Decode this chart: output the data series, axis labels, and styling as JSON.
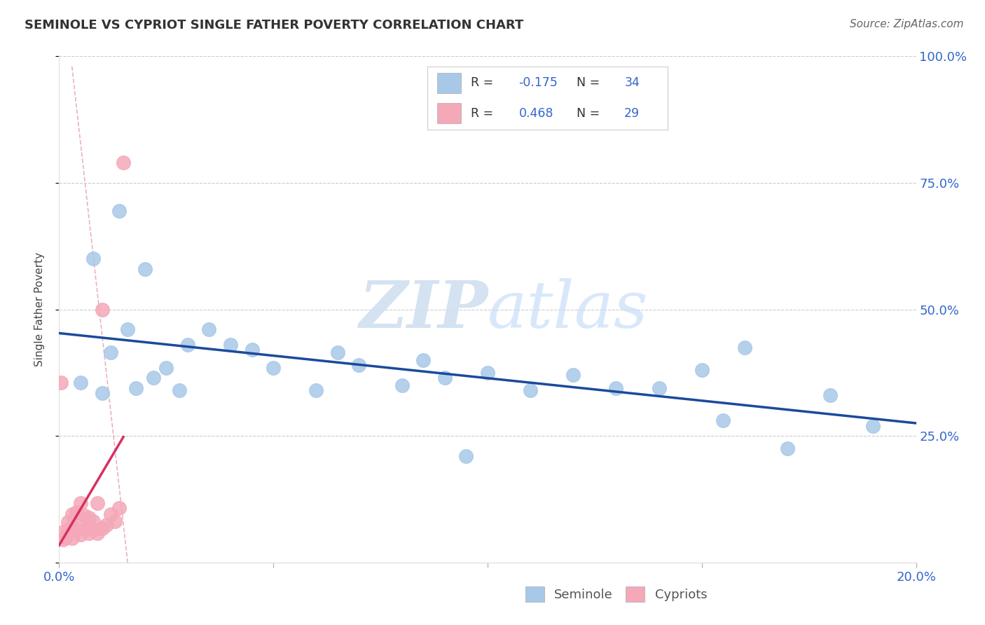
{
  "title": "SEMINOLE VS CYPRIOT SINGLE FATHER POVERTY CORRELATION CHART",
  "source": "Source: ZipAtlas.com",
  "ylabel": "Single Father Poverty",
  "xlim": [
    0.0,
    0.2
  ],
  "ylim": [
    0.0,
    1.0
  ],
  "R_seminole": -0.175,
  "N_seminole": 34,
  "R_cypriot": 0.468,
  "N_cypriot": 29,
  "legend_label_seminole": "Seminole",
  "legend_label_cypriot": "Cypriots",
  "seminole_color": "#a8c8e8",
  "cypriot_color": "#f4a8b8",
  "trend_seminole_color": "#1a4a9c",
  "trend_cypriot_color": "#d83060",
  "background_color": "#ffffff",
  "grid_color": "#cccccc",
  "watermark_zip": "ZIP",
  "watermark_atlas": "atlas",
  "seminole_x": [
    0.005,
    0.008,
    0.01,
    0.012,
    0.014,
    0.016,
    0.018,
    0.02,
    0.022,
    0.025,
    0.028,
    0.03,
    0.035,
    0.04,
    0.045,
    0.05,
    0.06,
    0.065,
    0.07,
    0.08,
    0.085,
    0.09,
    0.095,
    0.1,
    0.11,
    0.12,
    0.13,
    0.14,
    0.15,
    0.155,
    0.16,
    0.17,
    0.18,
    0.19
  ],
  "seminole_y": [
    0.355,
    0.6,
    0.335,
    0.415,
    0.695,
    0.46,
    0.345,
    0.58,
    0.365,
    0.385,
    0.34,
    0.43,
    0.46,
    0.43,
    0.42,
    0.385,
    0.34,
    0.415,
    0.39,
    0.35,
    0.4,
    0.365,
    0.21,
    0.375,
    0.34,
    0.37,
    0.345,
    0.345,
    0.38,
    0.28,
    0.425,
    0.225,
    0.33,
    0.27
  ],
  "cypriot_x": [
    0.0005,
    0.001,
    0.001,
    0.0015,
    0.002,
    0.002,
    0.003,
    0.003,
    0.003,
    0.004,
    0.004,
    0.005,
    0.005,
    0.005,
    0.006,
    0.006,
    0.007,
    0.007,
    0.008,
    0.008,
    0.009,
    0.009,
    0.01,
    0.01,
    0.011,
    0.012,
    0.013,
    0.014,
    0.015
  ],
  "cypriot_y": [
    0.355,
    0.045,
    0.06,
    0.05,
    0.06,
    0.08,
    0.048,
    0.072,
    0.095,
    0.065,
    0.1,
    0.055,
    0.08,
    0.118,
    0.065,
    0.092,
    0.058,
    0.088,
    0.065,
    0.082,
    0.058,
    0.118,
    0.068,
    0.5,
    0.075,
    0.095,
    0.082,
    0.108,
    0.79
  ],
  "dashed_line_x": [
    0.003,
    0.016
  ],
  "dashed_line_y": [
    0.98,
    0.0
  ]
}
